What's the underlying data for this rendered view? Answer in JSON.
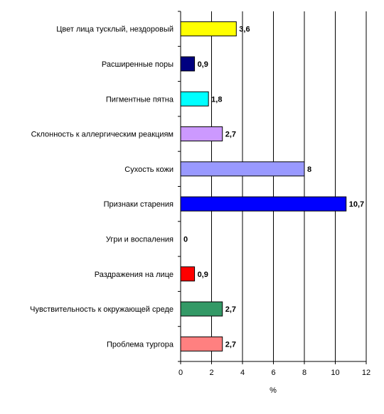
{
  "chart_data": {
    "type": "bar",
    "orientation": "horizontal",
    "categories": [
      "Цвет лица тусклый, нездоровый",
      "Расширенные поры",
      "Пигментные пятна",
      "Склонность к аллергическим реакциям",
      "Сухость кожи",
      "Признаки старения",
      "Угри и воспаления",
      "Раздражения на лице",
      "Чувствительность к окружающей среде",
      "Проблема тургора"
    ],
    "values": [
      3.6,
      0.9,
      1.8,
      2.7,
      8,
      10.7,
      0,
      0.9,
      2.7,
      2.7
    ],
    "data_labels": [
      "3,6",
      "0,9",
      "1,8",
      "2,7",
      "8",
      "10,7",
      "0",
      "0,9",
      "2,7",
      "2,7"
    ],
    "bar_colors": [
      "#ffff00",
      "#000080",
      "#00ffff",
      "#cc99ff",
      "#9999ff",
      "#0000ff",
      "#ffffff",
      "#ff0000",
      "#339966",
      "#ff8080"
    ],
    "xlim": [
      0,
      12
    ],
    "x_ticks": [
      0,
      2,
      4,
      6,
      8,
      10,
      12
    ],
    "xlabel": "%",
    "grid": "vertical",
    "legend": "none"
  }
}
